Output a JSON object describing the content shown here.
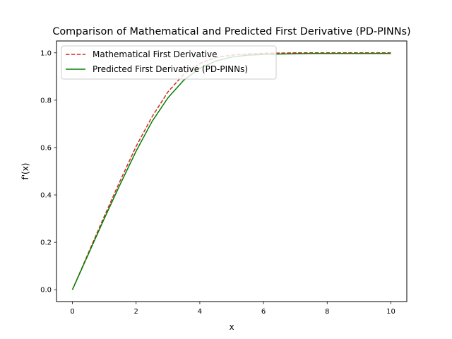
{
  "chart_data": {
    "type": "line",
    "title": "Comparison of Mathematical and Predicted First Derivative (PD-PINNs)",
    "xlabel": "x",
    "ylabel": "f'(x)",
    "xlim": [
      -0.5,
      10.5
    ],
    "ylim": [
      -0.05,
      1.05
    ],
    "x_ticks": [
      0,
      2,
      4,
      6,
      8,
      10
    ],
    "y_ticks": [
      0.0,
      0.2,
      0.4,
      0.6,
      0.8,
      1.0
    ],
    "x_tick_labels": [
      "0",
      "2",
      "4",
      "6",
      "8",
      "10"
    ],
    "y_tick_labels": [
      "0.0",
      "0.2",
      "0.4",
      "0.6",
      "0.8",
      "1.0"
    ],
    "grid": false,
    "legend_position": "top-left",
    "series": [
      {
        "name": "Mathematical First Derivative",
        "color": "#d62728",
        "style": "dashed",
        "x": [
          0,
          0.5,
          1,
          1.5,
          2,
          2.5,
          3,
          3.5,
          4,
          4.5,
          5,
          5.5,
          6,
          6.5,
          7,
          7.5,
          8,
          8.5,
          9,
          9.5,
          10
        ],
        "y": [
          0.0,
          0.155,
          0.31,
          0.46,
          0.605,
          0.73,
          0.835,
          0.91,
          0.955,
          0.98,
          0.99,
          0.995,
          0.998,
          0.999,
          1.0,
          1.0,
          1.0,
          1.0,
          1.0,
          1.0,
          1.0
        ]
      },
      {
        "name": "Predicted First Derivative (PD-PINNs)",
        "color": "#008000",
        "style": "solid",
        "x": [
          0,
          0.5,
          1,
          1.5,
          2,
          2.5,
          3,
          3.5,
          4,
          4.5,
          5,
          5.5,
          6,
          6.5,
          7,
          7.5,
          8,
          8.5,
          9,
          9.5,
          10
        ],
        "y": [
          0.0,
          0.15,
          0.3,
          0.445,
          0.585,
          0.71,
          0.81,
          0.885,
          0.935,
          0.965,
          0.982,
          0.99,
          0.993,
          0.995,
          0.996,
          0.997,
          0.997,
          0.997,
          0.997,
          0.997,
          0.997
        ]
      }
    ]
  }
}
